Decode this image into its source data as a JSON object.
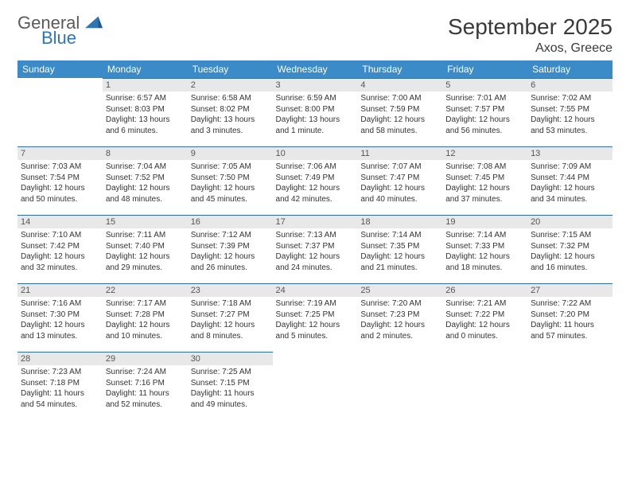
{
  "logo": {
    "text1": "General",
    "text2": "Blue"
  },
  "title": "September 2025",
  "location": "Axos, Greece",
  "colors": {
    "header_bg": "#3b8bc9",
    "header_text": "#ffffff",
    "daynum_bg": "#e8e8e8",
    "row_divider": "#2e6fa8",
    "body_text": "#333333",
    "logo_gray": "#5a5a5a",
    "logo_blue": "#2e75b6"
  },
  "weekdays": [
    "Sunday",
    "Monday",
    "Tuesday",
    "Wednesday",
    "Thursday",
    "Friday",
    "Saturday"
  ],
  "weeks": [
    [
      null,
      {
        "n": "1",
        "sr": "Sunrise: 6:57 AM",
        "ss": "Sunset: 8:03 PM",
        "dl": "Daylight: 13 hours and 6 minutes."
      },
      {
        "n": "2",
        "sr": "Sunrise: 6:58 AM",
        "ss": "Sunset: 8:02 PM",
        "dl": "Daylight: 13 hours and 3 minutes."
      },
      {
        "n": "3",
        "sr": "Sunrise: 6:59 AM",
        "ss": "Sunset: 8:00 PM",
        "dl": "Daylight: 13 hours and 1 minute."
      },
      {
        "n": "4",
        "sr": "Sunrise: 7:00 AM",
        "ss": "Sunset: 7:59 PM",
        "dl": "Daylight: 12 hours and 58 minutes."
      },
      {
        "n": "5",
        "sr": "Sunrise: 7:01 AM",
        "ss": "Sunset: 7:57 PM",
        "dl": "Daylight: 12 hours and 56 minutes."
      },
      {
        "n": "6",
        "sr": "Sunrise: 7:02 AM",
        "ss": "Sunset: 7:55 PM",
        "dl": "Daylight: 12 hours and 53 minutes."
      }
    ],
    [
      {
        "n": "7",
        "sr": "Sunrise: 7:03 AM",
        "ss": "Sunset: 7:54 PM",
        "dl": "Daylight: 12 hours and 50 minutes."
      },
      {
        "n": "8",
        "sr": "Sunrise: 7:04 AM",
        "ss": "Sunset: 7:52 PM",
        "dl": "Daylight: 12 hours and 48 minutes."
      },
      {
        "n": "9",
        "sr": "Sunrise: 7:05 AM",
        "ss": "Sunset: 7:50 PM",
        "dl": "Daylight: 12 hours and 45 minutes."
      },
      {
        "n": "10",
        "sr": "Sunrise: 7:06 AM",
        "ss": "Sunset: 7:49 PM",
        "dl": "Daylight: 12 hours and 42 minutes."
      },
      {
        "n": "11",
        "sr": "Sunrise: 7:07 AM",
        "ss": "Sunset: 7:47 PM",
        "dl": "Daylight: 12 hours and 40 minutes."
      },
      {
        "n": "12",
        "sr": "Sunrise: 7:08 AM",
        "ss": "Sunset: 7:45 PM",
        "dl": "Daylight: 12 hours and 37 minutes."
      },
      {
        "n": "13",
        "sr": "Sunrise: 7:09 AM",
        "ss": "Sunset: 7:44 PM",
        "dl": "Daylight: 12 hours and 34 minutes."
      }
    ],
    [
      {
        "n": "14",
        "sr": "Sunrise: 7:10 AM",
        "ss": "Sunset: 7:42 PM",
        "dl": "Daylight: 12 hours and 32 minutes."
      },
      {
        "n": "15",
        "sr": "Sunrise: 7:11 AM",
        "ss": "Sunset: 7:40 PM",
        "dl": "Daylight: 12 hours and 29 minutes."
      },
      {
        "n": "16",
        "sr": "Sunrise: 7:12 AM",
        "ss": "Sunset: 7:39 PM",
        "dl": "Daylight: 12 hours and 26 minutes."
      },
      {
        "n": "17",
        "sr": "Sunrise: 7:13 AM",
        "ss": "Sunset: 7:37 PM",
        "dl": "Daylight: 12 hours and 24 minutes."
      },
      {
        "n": "18",
        "sr": "Sunrise: 7:14 AM",
        "ss": "Sunset: 7:35 PM",
        "dl": "Daylight: 12 hours and 21 minutes."
      },
      {
        "n": "19",
        "sr": "Sunrise: 7:14 AM",
        "ss": "Sunset: 7:33 PM",
        "dl": "Daylight: 12 hours and 18 minutes."
      },
      {
        "n": "20",
        "sr": "Sunrise: 7:15 AM",
        "ss": "Sunset: 7:32 PM",
        "dl": "Daylight: 12 hours and 16 minutes."
      }
    ],
    [
      {
        "n": "21",
        "sr": "Sunrise: 7:16 AM",
        "ss": "Sunset: 7:30 PM",
        "dl": "Daylight: 12 hours and 13 minutes."
      },
      {
        "n": "22",
        "sr": "Sunrise: 7:17 AM",
        "ss": "Sunset: 7:28 PM",
        "dl": "Daylight: 12 hours and 10 minutes."
      },
      {
        "n": "23",
        "sr": "Sunrise: 7:18 AM",
        "ss": "Sunset: 7:27 PM",
        "dl": "Daylight: 12 hours and 8 minutes."
      },
      {
        "n": "24",
        "sr": "Sunrise: 7:19 AM",
        "ss": "Sunset: 7:25 PM",
        "dl": "Daylight: 12 hours and 5 minutes."
      },
      {
        "n": "25",
        "sr": "Sunrise: 7:20 AM",
        "ss": "Sunset: 7:23 PM",
        "dl": "Daylight: 12 hours and 2 minutes."
      },
      {
        "n": "26",
        "sr": "Sunrise: 7:21 AM",
        "ss": "Sunset: 7:22 PM",
        "dl": "Daylight: 12 hours and 0 minutes."
      },
      {
        "n": "27",
        "sr": "Sunrise: 7:22 AM",
        "ss": "Sunset: 7:20 PM",
        "dl": "Daylight: 11 hours and 57 minutes."
      }
    ],
    [
      {
        "n": "28",
        "sr": "Sunrise: 7:23 AM",
        "ss": "Sunset: 7:18 PM",
        "dl": "Daylight: 11 hours and 54 minutes."
      },
      {
        "n": "29",
        "sr": "Sunrise: 7:24 AM",
        "ss": "Sunset: 7:16 PM",
        "dl": "Daylight: 11 hours and 52 minutes."
      },
      {
        "n": "30",
        "sr": "Sunrise: 7:25 AM",
        "ss": "Sunset: 7:15 PM",
        "dl": "Daylight: 11 hours and 49 minutes."
      },
      null,
      null,
      null,
      null
    ]
  ]
}
